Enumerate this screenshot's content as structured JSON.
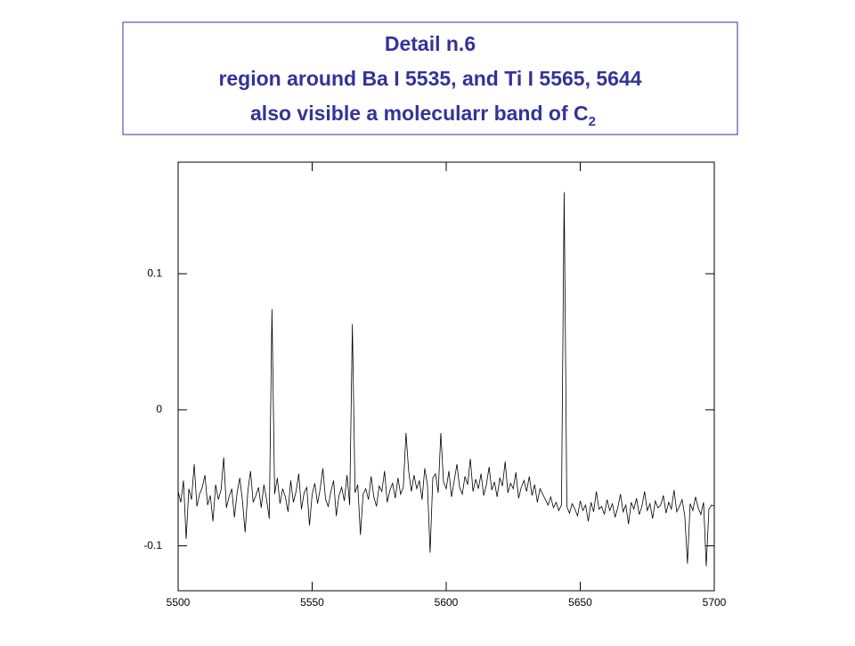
{
  "header": {
    "title_lines": [
      "Detail n.6",
      "region around Ba I 5535, and Ti I 5565, 5644",
      "also visible a molecularr band of C"
    ],
    "title_subscript": "2"
  },
  "chart_data": {
    "type": "line",
    "color": "#000000",
    "x": [
      5500,
      5501,
      5502,
      5503,
      5504,
      5505,
      5506,
      5507,
      5508,
      5509,
      5510,
      5511,
      5512,
      5513,
      5514,
      5515,
      5516,
      5517,
      5518,
      5519,
      5520,
      5521,
      5522,
      5523,
      5524,
      5525,
      5526,
      5527,
      5528,
      5529,
      5530,
      5531,
      5532,
      5533,
      5534,
      5535,
      5536,
      5537,
      5538,
      5539,
      5540,
      5541,
      5542,
      5543,
      5544,
      5545,
      5546,
      5547,
      5548,
      5549,
      5550,
      5551,
      5552,
      5553,
      5554,
      5555,
      5556,
      5557,
      5558,
      5559,
      5560,
      5561,
      5562,
      5563,
      5564,
      5565,
      5566,
      5567,
      5568,
      5569,
      5570,
      5571,
      5572,
      5573,
      5574,
      5575,
      5576,
      5577,
      5578,
      5579,
      5580,
      5581,
      5582,
      5583,
      5584,
      5585,
      5586,
      5587,
      5588,
      5589,
      5590,
      5591,
      5592,
      5593,
      5594,
      5595,
      5596,
      5597,
      5598,
      5599,
      5600,
      5601,
      5602,
      5603,
      5604,
      5605,
      5606,
      5607,
      5608,
      5609,
      5610,
      5611,
      5612,
      5613,
      5614,
      5615,
      5616,
      5617,
      5618,
      5619,
      5620,
      5621,
      5622,
      5623,
      5624,
      5625,
      5626,
      5627,
      5628,
      5629,
      5630,
      5631,
      5632,
      5633,
      5634,
      5635,
      5636,
      5637,
      5638,
      5639,
      5640,
      5641,
      5642,
      5643,
      5644,
      5645,
      5646,
      5647,
      5648,
      5649,
      5650,
      5651,
      5652,
      5653,
      5654,
      5655,
      5656,
      5657,
      5658,
      5659,
      5660,
      5661,
      5662,
      5663,
      5664,
      5665,
      5666,
      5667,
      5668,
      5669,
      5670,
      5671,
      5672,
      5673,
      5674,
      5675,
      5676,
      5677,
      5678,
      5679,
      5680,
      5681,
      5682,
      5683,
      5684,
      5685,
      5686,
      5687,
      5688,
      5689,
      5690,
      5691,
      5692,
      5693,
      5694,
      5695,
      5696,
      5697,
      5698,
      5699,
      5700
    ],
    "values": [
      -0.06,
      -0.068,
      -0.052,
      -0.095,
      -0.058,
      -0.066,
      -0.04,
      -0.071,
      -0.062,
      -0.057,
      -0.048,
      -0.07,
      -0.063,
      -0.082,
      -0.055,
      -0.066,
      -0.059,
      -0.035,
      -0.072,
      -0.064,
      -0.058,
      -0.079,
      -0.061,
      -0.05,
      -0.067,
      -0.09,
      -0.06,
      -0.045,
      -0.068,
      -0.063,
      -0.057,
      -0.072,
      -0.055,
      -0.066,
      -0.08,
      0.074,
      -0.062,
      -0.05,
      -0.069,
      -0.058,
      -0.064,
      -0.075,
      -0.052,
      -0.068,
      -0.06,
      -0.047,
      -0.073,
      -0.061,
      -0.057,
      -0.085,
      -0.062,
      -0.054,
      -0.069,
      -0.058,
      -0.043,
      -0.066,
      -0.071,
      -0.06,
      -0.052,
      -0.078,
      -0.063,
      -0.057,
      -0.067,
      -0.048,
      -0.07,
      0.063,
      -0.061,
      -0.055,
      -0.092,
      -0.062,
      -0.058,
      -0.066,
      -0.049,
      -0.064,
      -0.071,
      -0.056,
      -0.06,
      -0.045,
      -0.068,
      -0.059,
      -0.054,
      -0.065,
      -0.05,
      -0.062,
      -0.057,
      -0.017,
      -0.045,
      -0.06,
      -0.048,
      -0.058,
      -0.052,
      -0.066,
      -0.043,
      -0.055,
      -0.105,
      -0.05,
      -0.047,
      -0.061,
      -0.017,
      -0.053,
      -0.058,
      -0.045,
      -0.064,
      -0.052,
      -0.04,
      -0.057,
      -0.062,
      -0.049,
      -0.055,
      -0.036,
      -0.06,
      -0.051,
      -0.058,
      -0.047,
      -0.063,
      -0.055,
      -0.042,
      -0.059,
      -0.053,
      -0.064,
      -0.05,
      -0.056,
      -0.038,
      -0.061,
      -0.054,
      -0.058,
      -0.046,
      -0.065,
      -0.057,
      -0.052,
      -0.06,
      -0.049,
      -0.063,
      -0.055,
      -0.068,
      -0.058,
      -0.062,
      -0.066,
      -0.07,
      -0.064,
      -0.072,
      -0.068,
      -0.074,
      -0.07,
      0.16,
      -0.071,
      -0.076,
      -0.069,
      -0.073,
      -0.078,
      -0.067,
      -0.074,
      -0.07,
      -0.082,
      -0.068,
      -0.075,
      -0.06,
      -0.073,
      -0.071,
      -0.077,
      -0.066,
      -0.074,
      -0.069,
      -0.079,
      -0.072,
      -0.062,
      -0.075,
      -0.07,
      -0.084,
      -0.068,
      -0.073,
      -0.065,
      -0.077,
      -0.071,
      -0.06,
      -0.074,
      -0.069,
      -0.08,
      -0.067,
      -0.072,
      -0.07,
      -0.063,
      -0.076,
      -0.068,
      -0.073,
      -0.059,
      -0.075,
      -0.071,
      -0.066,
      -0.078,
      -0.113,
      -0.069,
      -0.074,
      -0.064,
      -0.072,
      -0.077,
      -0.068,
      -0.115,
      -0.073,
      -0.07,
      -0.071
    ],
    "xlim": [
      5500,
      5700
    ],
    "xticks": [
      5500,
      5550,
      5600,
      5650,
      5700
    ],
    "ylim": [
      -0.133,
      0.182
    ],
    "yticks": [
      -0.1,
      0,
      0.1
    ]
  }
}
